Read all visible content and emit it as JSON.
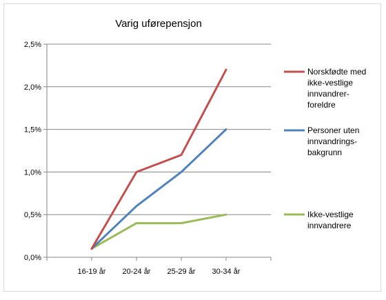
{
  "chart_data": {
    "type": "line",
    "title": "Varig uførepensjon",
    "categories": [
      "16-19 år",
      "20-24 år",
      "25-29 år",
      "30-34 år"
    ],
    "y_ticks": [
      "0,0%",
      "0,5%",
      "1,0%",
      "1,5%",
      "2,0%",
      "2,5%"
    ],
    "ylim": [
      0,
      2.5
    ],
    "grid": true,
    "legend_position": "right",
    "series": [
      {
        "name": "Norskfødte med ikke-vestlige innvandrer-foreldre",
        "legend_lines": [
          "Norskfødte med",
          "ikke-vestlige",
          "innvandrer-",
          "foreldre"
        ],
        "color": "#c0504d",
        "values": [
          0.1,
          1.0,
          1.2,
          2.2
        ]
      },
      {
        "name": "Personer uten innvandrings-bakgrunn",
        "legend_lines": [
          "Personer uten",
          "innvandrings-",
          "bakgrunn"
        ],
        "color": "#4f81bd",
        "values": [
          0.1,
          0.6,
          1.0,
          1.5
        ]
      },
      {
        "name": "Ikke-vestlige innvandrere",
        "legend_lines": [
          "Ikke-vestlige",
          "innvandrere"
        ],
        "color": "#9bbb59",
        "values": [
          0.1,
          0.4,
          0.4,
          0.5
        ]
      }
    ]
  }
}
